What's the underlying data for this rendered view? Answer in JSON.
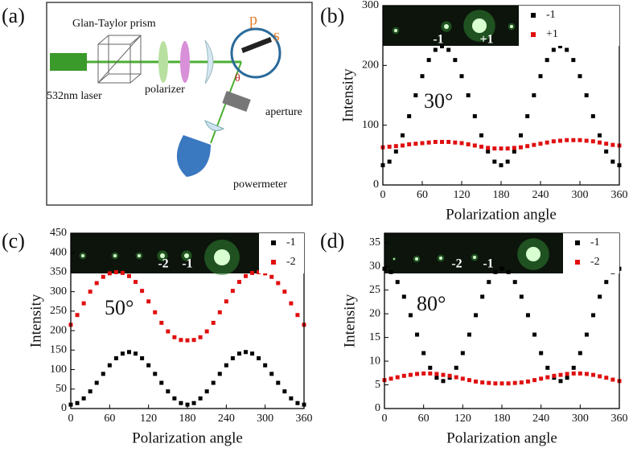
{
  "diagram": {
    "panel_label": "(a)",
    "prism": "Glan-Taylor prism",
    "laser": "532nm laser",
    "polarizer": "polarizer",
    "aperture": "aperture",
    "powermeter": "powermeter",
    "p": "p",
    "s": "s",
    "theta": "θ"
  },
  "chart_data": [
    {
      "type": "scatter",
      "panel_label": "(b)",
      "xlabel": "Polarization angle",
      "ylabel": "Intensity",
      "annotation": "30°",
      "inset_labels": [
        "-1",
        "+1"
      ],
      "x": [
        0,
        10,
        20,
        30,
        40,
        50,
        60,
        70,
        80,
        90,
        100,
        110,
        120,
        130,
        140,
        150,
        160,
        170,
        180,
        190,
        200,
        210,
        220,
        230,
        240,
        250,
        260,
        270,
        280,
        290,
        300,
        310,
        320,
        330,
        340,
        350,
        360
      ],
      "xlim": [
        0,
        360
      ],
      "xticks": [
        0,
        60,
        120,
        180,
        240,
        300,
        360
      ],
      "ylim": [
        0,
        300
      ],
      "yticks": [
        0,
        100,
        200,
        300
      ],
      "series": [
        {
          "name": "-1",
          "color": "#000000",
          "values": [
            33,
            39,
            56,
            83,
            115,
            150,
            182,
            209,
            226,
            232,
            226,
            209,
            182,
            150,
            115,
            83,
            56,
            39,
            33,
            39,
            56,
            83,
            115,
            150,
            182,
            209,
            226,
            232,
            226,
            209,
            182,
            150,
            115,
            83,
            56,
            39,
            33
          ]
        },
        {
          "name": "+1",
          "color": "#e01010",
          "values": [
            63,
            64,
            65,
            66,
            68,
            69,
            70,
            71,
            72,
            72,
            72,
            71,
            70,
            68,
            66,
            64,
            62,
            61,
            61,
            61,
            62,
            63,
            65,
            67,
            69,
            71,
            73,
            74,
            75,
            75,
            75,
            74,
            73,
            71,
            69,
            67,
            66
          ]
        }
      ]
    },
    {
      "type": "scatter",
      "panel_label": "(c)",
      "xlabel": "Polarization angle",
      "ylabel": "Intensity",
      "annotation": "50°",
      "inset_labels": [
        "-2",
        "-1"
      ],
      "x": [
        0,
        10,
        20,
        30,
        40,
        50,
        60,
        70,
        80,
        90,
        100,
        110,
        120,
        130,
        140,
        150,
        160,
        170,
        180,
        190,
        200,
        210,
        220,
        230,
        240,
        250,
        260,
        270,
        280,
        290,
        300,
        310,
        320,
        330,
        340,
        350,
        360
      ],
      "xlim": [
        0,
        360
      ],
      "xticks": [
        0,
        60,
        120,
        180,
        240,
        300,
        360
      ],
      "ylim": [
        0,
        450
      ],
      "yticks": [
        0,
        50,
        100,
        150,
        200,
        250,
        300,
        350,
        400,
        450
      ],
      "series": [
        {
          "name": "-1",
          "color": "#000000",
          "values": [
            10,
            14,
            26,
            44,
            66,
            89,
            111,
            129,
            141,
            145,
            141,
            129,
            111,
            89,
            66,
            44,
            26,
            14,
            10,
            14,
            26,
            44,
            66,
            89,
            111,
            129,
            141,
            145,
            141,
            129,
            111,
            89,
            66,
            44,
            26,
            14,
            10
          ]
        },
        {
          "name": "-2",
          "color": "#e01010",
          "values": [
            215,
            240,
            270,
            300,
            322,
            338,
            347,
            350,
            348,
            340,
            325,
            302,
            275,
            247,
            220,
            198,
            183,
            176,
            175,
            176,
            183,
            198,
            220,
            247,
            275,
            302,
            325,
            340,
            348,
            350,
            347,
            338,
            322,
            300,
            270,
            240,
            215
          ]
        }
      ]
    },
    {
      "type": "scatter",
      "panel_label": "(d)",
      "xlabel": "Polarization angle",
      "ylabel": "Intensity",
      "annotation": "80°",
      "inset_labels": [
        "-2",
        "-1"
      ],
      "x": [
        0,
        10,
        20,
        30,
        40,
        50,
        60,
        70,
        80,
        90,
        100,
        110,
        120,
        130,
        140,
        150,
        160,
        170,
        180,
        190,
        200,
        210,
        220,
        230,
        240,
        250,
        260,
        270,
        280,
        290,
        300,
        310,
        320,
        330,
        340,
        350,
        360
      ],
      "xlim": [
        0,
        360
      ],
      "xticks": [
        0,
        60,
        120,
        180,
        240,
        300,
        360
      ],
      "ylim": [
        0,
        37
      ],
      "yticks": [
        0,
        5,
        10,
        15,
        20,
        25,
        30,
        35
      ],
      "series": [
        {
          "name": "-1",
          "color": "#000000",
          "values": [
            29.5,
            28.8,
            26.7,
            23.6,
            19.7,
            15.6,
            11.7,
            8.6,
            6.5,
            5.8,
            6.5,
            8.6,
            11.7,
            15.6,
            19.7,
            23.6,
            26.7,
            28.8,
            29.5,
            28.8,
            26.7,
            23.6,
            19.7,
            15.6,
            11.7,
            8.6,
            6.5,
            5.8,
            6.5,
            8.6,
            11.7,
            15.6,
            19.7,
            23.6,
            26.7,
            28.8,
            29.5
          ]
        },
        {
          "name": "-2",
          "color": "#e01010",
          "values": [
            6.0,
            6.3,
            6.6,
            6.9,
            7.1,
            7.3,
            7.4,
            7.4,
            7.3,
            7.1,
            6.9,
            6.6,
            6.3,
            6.0,
            5.7,
            5.5,
            5.4,
            5.3,
            5.3,
            5.3,
            5.4,
            5.5,
            5.7,
            6.0,
            6.3,
            6.6,
            6.9,
            7.1,
            7.3,
            7.4,
            7.4,
            7.3,
            7.1,
            6.8,
            6.5,
            6.1,
            5.8
          ]
        }
      ]
    }
  ]
}
